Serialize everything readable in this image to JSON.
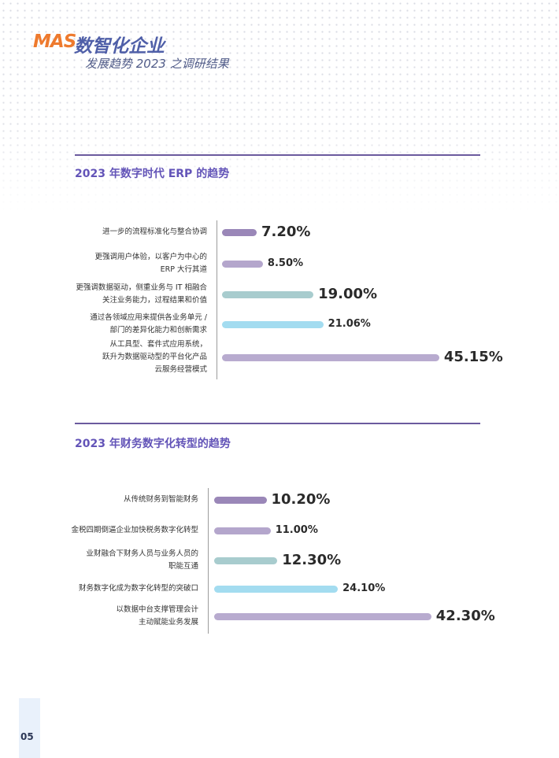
{
  "header": {
    "logo_mark": "MAS",
    "logo_title": "数智化企业",
    "logo_subtitle": "发展趋势 2023 之调研结果"
  },
  "page_number": "05",
  "chart_data": [
    {
      "type": "bar",
      "orientation": "horizontal",
      "title": "2023 年数字时代 ERP 的趋势",
      "categories": [
        [
          "进一步的流程标准化与整合协调"
        ],
        [
          "更强调用户体验，以客户为中心的",
          "ERP 大行其道"
        ],
        [
          "更强调数据驱动，侧重业务与 IT 相融合",
          "关注业务能力，过程结果和价值"
        ],
        [
          "通过各领域应用来提供各业务单元 /",
          "部门的差异化能力和创新需求"
        ],
        [
          "从工具型、套件式应用系统，",
          "跃升为数据驱动型的平台化产品",
          "云服务经营模式"
        ]
      ],
      "values": [
        7.2,
        8.5,
        19.0,
        21.06,
        45.15
      ],
      "value_labels": [
        "7.20%",
        "8.50%",
        "19.00%",
        "21.06%",
        "45.15%"
      ],
      "bar_colors": [
        "#9a87b8",
        "#b4a6cc",
        "#a8ccce",
        "#a3dcf0",
        "#b8abcf"
      ],
      "grid": false,
      "legend": "none"
    },
    {
      "type": "bar",
      "orientation": "horizontal",
      "title": "2023 年财务数字化转型的趋势",
      "categories": [
        [
          "从传统财务到智能财务"
        ],
        [
          "金税四期倒逼企业加快税务数字化转型"
        ],
        [
          "业财融合下财务人员与业务人员的",
          "职能互通"
        ],
        [
          "财务数字化成为数字化转型的突破口"
        ],
        [
          "以数据中台支撑管理会计",
          "主动赋能业务发展"
        ]
      ],
      "values": [
        10.2,
        11.0,
        12.3,
        24.1,
        42.3
      ],
      "value_labels": [
        "10.20%",
        "11.00%",
        "12.30%",
        "24.10%",
        "42.30%"
      ],
      "bar_colors": [
        "#9a87b8",
        "#b4a6cc",
        "#a8ccce",
        "#a3dcf0",
        "#b8abcf"
      ],
      "grid": false,
      "legend": "none"
    }
  ]
}
